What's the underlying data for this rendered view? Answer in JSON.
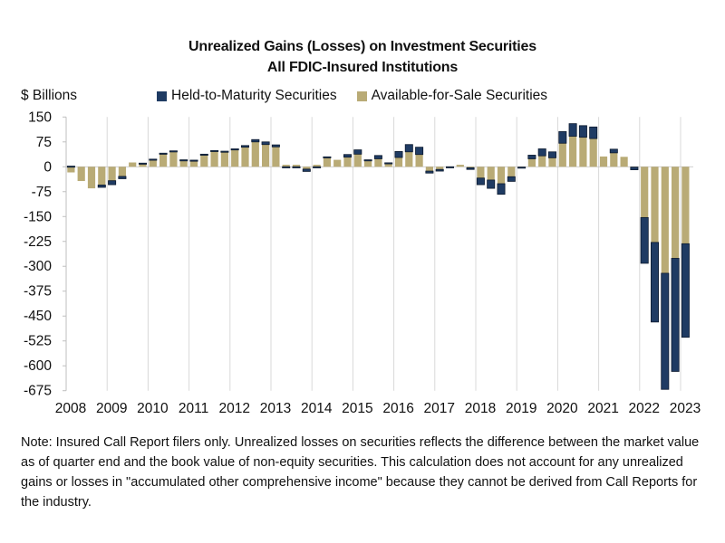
{
  "chart_data": {
    "type": "bar",
    "stacked": true,
    "title": "Unrealized Gains (Losses) on Investment Securities",
    "subtitle": "All FDIC-Insured Institutions",
    "ylabel": "$ Billions",
    "xlabel": "",
    "ylim": [
      -675,
      150
    ],
    "yticks": [
      150,
      75,
      0,
      -75,
      -150,
      -225,
      -300,
      -375,
      -450,
      -525,
      -600,
      -675
    ],
    "xtick_labels": [
      "2008",
      "2009",
      "2010",
      "2011",
      "2012",
      "2013",
      "2014",
      "2015",
      "2016",
      "2017",
      "2018",
      "2019",
      "2020",
      "2021",
      "2022",
      "2023"
    ],
    "grid": "vertical",
    "legend_position": "top-center",
    "categories": [
      "2008Q1",
      "2008Q2",
      "2008Q3",
      "2008Q4",
      "2009Q1",
      "2009Q2",
      "2009Q3",
      "2009Q4",
      "2010Q1",
      "2010Q2",
      "2010Q3",
      "2010Q4",
      "2011Q1",
      "2011Q2",
      "2011Q3",
      "2011Q4",
      "2012Q1",
      "2012Q2",
      "2012Q3",
      "2012Q4",
      "2013Q1",
      "2013Q2",
      "2013Q3",
      "2013Q4",
      "2014Q1",
      "2014Q2",
      "2014Q3",
      "2014Q4",
      "2015Q1",
      "2015Q2",
      "2015Q3",
      "2015Q4",
      "2016Q1",
      "2016Q2",
      "2016Q3",
      "2016Q4",
      "2017Q1",
      "2017Q2",
      "2017Q3",
      "2017Q4",
      "2018Q1",
      "2018Q2",
      "2018Q3",
      "2018Q4",
      "2019Q1",
      "2019Q2",
      "2019Q3",
      "2019Q4",
      "2020Q1",
      "2020Q2",
      "2020Q3",
      "2020Q4",
      "2021Q1",
      "2021Q2",
      "2021Q3",
      "2021Q4",
      "2022Q1",
      "2022Q2",
      "2022Q3",
      "2022Q4",
      "2023Q1"
    ],
    "series": [
      {
        "name": "Available-for-Sale Securities",
        "color": "#B9AB76",
        "values": [
          -17,
          -43,
          -65,
          -55,
          -42,
          -29,
          13,
          10,
          21,
          39,
          45,
          18,
          19,
          36,
          47,
          45,
          51,
          59,
          75,
          67,
          60,
          6,
          6,
          -7,
          6,
          29,
          21,
          29,
          38,
          18,
          24,
          9,
          28,
          45,
          37,
          -13,
          -8,
          1,
          6,
          -3,
          -34,
          -40,
          -51,
          -30,
          -1,
          24,
          33,
          27,
          71,
          92,
          89,
          85,
          31,
          42,
          30,
          -1,
          -153,
          -228,
          -321,
          -276,
          -232
        ]
      },
      {
        "name": "Held-to-Maturity Securities",
        "color": "#1F3B63",
        "values": [
          2,
          0,
          0,
          -7,
          -12,
          -7,
          0,
          1,
          2,
          2,
          3,
          3,
          1,
          2,
          2,
          2,
          3,
          5,
          7,
          8,
          6,
          -3,
          -3,
          -7,
          -1,
          1,
          0,
          8,
          13,
          3,
          10,
          3,
          18,
          22,
          22,
          -6,
          -5,
          -1,
          0,
          -5,
          -20,
          -25,
          -32,
          -14,
          -3,
          11,
          21,
          18,
          35,
          38,
          35,
          35,
          0,
          11,
          0,
          -8,
          -138,
          -240,
          -350,
          -341,
          -282
        ]
      }
    ]
  },
  "header": {
    "title_line1": "Unrealized Gains (Losses) on Investment Securities",
    "title_line2": "All FDIC-Insured Institutions",
    "unit_label": "$ Billions"
  },
  "legend": {
    "items": [
      {
        "label": "Held-to-Maturity Securities",
        "color": "#1F3B63"
      },
      {
        "label": "Available-for-Sale Securities",
        "color": "#B9AB76"
      }
    ]
  },
  "note": "Note: Insured Call Report filers only. Unrealized losses on securities reflects the difference between the market value as of quarter end and the book value of non-equity securities. This calculation does not account for any unrealized gains or losses in \"accumulated other comprehensive income\" because they cannot be derived from Call Reports for the industry."
}
